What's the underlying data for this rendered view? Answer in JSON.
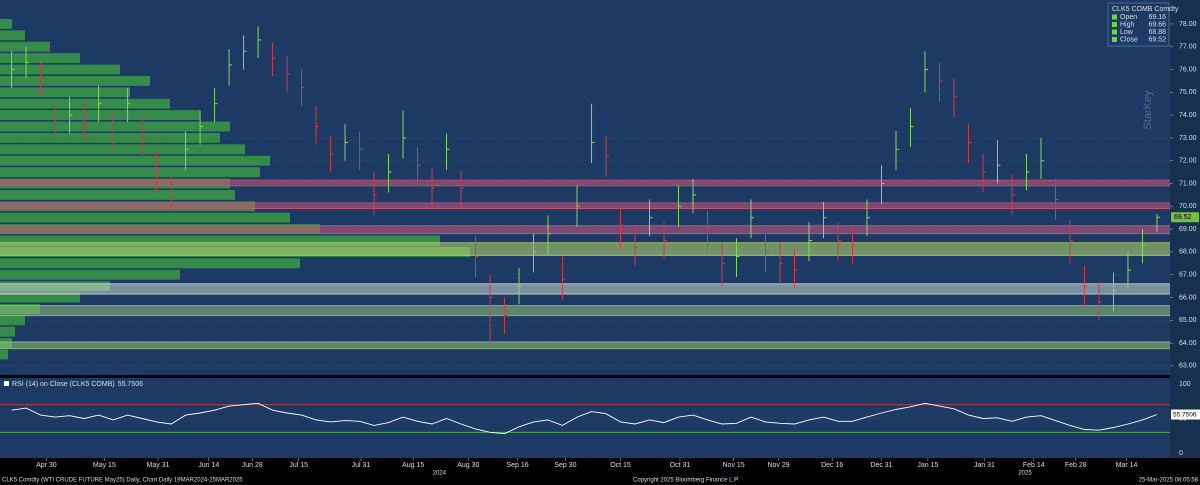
{
  "chart_data": {
    "type": "ohlc",
    "high": [
      76.8,
      77.0,
      76.4,
      74.6,
      74.8,
      74.5,
      75.3,
      74.2,
      75.2,
      73.9,
      72.4,
      71.4,
      73.3,
      74.2,
      75.2,
      76.9,
      77.5,
      77.9,
      77.2,
      76.6,
      76.0,
      74.4,
      73.1,
      73.6,
      73.3,
      71.5,
      72.3,
      74.2,
      72.6,
      71.7,
      73.2,
      71.6,
      68.7,
      67.0,
      66.0,
      67.3,
      68.8,
      69.6,
      67.8,
      70.9,
      74.5,
      73.1,
      69.9,
      69.1,
      70.3,
      69.3,
      70.9,
      71.2,
      69.8,
      68.4,
      68.6,
      70.3,
      68.8,
      68.4,
      68.1,
      69.3,
      70.2,
      69.3,
      69.1,
      70.3,
      71.8,
      73.3,
      74.3,
      76.8,
      76.3,
      75.6,
      73.6,
      72.3,
      72.9,
      71.4,
      72.3,
      73.0,
      71.2,
      69.4,
      67.4,
      66.7,
      67.1,
      68.0,
      69.0,
      69.66
    ],
    "low": [
      75.2,
      75.6,
      74.9,
      73.0,
      73.2,
      72.9,
      73.7,
      72.4,
      73.7,
      72.2,
      70.6,
      69.9,
      71.6,
      72.7,
      73.7,
      75.3,
      76.0,
      76.5,
      75.7,
      75.0,
      74.4,
      72.7,
      71.5,
      72.0,
      71.6,
      69.6,
      70.6,
      72.1,
      70.9,
      69.9,
      71.6,
      69.9,
      66.9,
      64.0,
      64.4,
      65.7,
      67.1,
      67.9,
      65.9,
      69.1,
      71.9,
      71.3,
      68.1,
      67.4,
      68.7,
      67.7,
      69.1,
      69.7,
      68.1,
      66.5,
      66.9,
      68.6,
      67.1,
      66.6,
      66.4,
      67.6,
      68.6,
      67.6,
      67.5,
      68.7,
      70.1,
      71.6,
      72.6,
      75.0,
      74.6,
      73.9,
      71.9,
      70.6,
      71.0,
      69.6,
      70.7,
      71.2,
      69.4,
      67.5,
      65.6,
      65.0,
      65.4,
      66.4,
      67.5,
      68.88
    ],
    "close": [
      76.0,
      76.3,
      75.6,
      73.8,
      74.0,
      73.6,
      74.5,
      73.2,
      74.5,
      73.0,
      71.5,
      70.5,
      72.5,
      73.5,
      74.5,
      76.2,
      76.8,
      77.3,
      76.5,
      75.8,
      75.2,
      73.5,
      72.3,
      72.8,
      72.5,
      70.5,
      71.5,
      73.0,
      71.8,
      70.8,
      72.5,
      70.8,
      67.8,
      66.0,
      65.2,
      66.5,
      68.0,
      68.8,
      66.8,
      70.0,
      72.8,
      72.2,
      69.0,
      68.2,
      69.5,
      68.5,
      70.0,
      70.5,
      69.0,
      67.5,
      67.8,
      69.5,
      68.0,
      67.5,
      67.2,
      68.5,
      69.5,
      68.5,
      68.3,
      69.5,
      71.0,
      72.5,
      73.5,
      76.0,
      75.5,
      74.8,
      72.8,
      71.5,
      71.8,
      70.5,
      71.5,
      72.0,
      70.3,
      68.5,
      66.5,
      65.8,
      66.3,
      67.2,
      68.3,
      69.52
    ],
    "up_color": "#7fdc5a",
    "down_color": "#d23c46",
    "ylim": [
      62.6,
      79.05
    ],
    "yticks": [
      {
        "value": 63,
        "label": "63.00"
      },
      {
        "value": 64,
        "label": "64.00"
      },
      {
        "value": 65,
        "label": "65.00"
      },
      {
        "value": 66,
        "label": "66.00"
      },
      {
        "value": 67,
        "label": "67.00"
      },
      {
        "value": 68,
        "label": "68.00"
      },
      {
        "value": 69,
        "label": "69.00"
      },
      {
        "value": 70,
        "label": "70.00"
      },
      {
        "value": 71,
        "label": "71.00"
      },
      {
        "value": 72,
        "label": "72.00"
      },
      {
        "value": 73,
        "label": "73.00"
      },
      {
        "value": 74,
        "label": "74.00"
      },
      {
        "value": 75,
        "label": "75.00"
      },
      {
        "value": 76,
        "label": "76.00"
      },
      {
        "value": 77,
        "label": "77.00"
      },
      {
        "value": 78,
        "label": "78.00"
      }
    ],
    "grid": true,
    "xlim": [
      -0.8,
      79.9
    ],
    "xticks": [
      {
        "value": 2.4,
        "label": "Apr 30"
      },
      {
        "value": 6.4,
        "label": "May 15"
      },
      {
        "value": 10.1,
        "label": "May 31"
      },
      {
        "value": 13.6,
        "label": "Jun 14"
      },
      {
        "value": 16.6,
        "label": "Jun 28"
      },
      {
        "value": 19.8,
        "label": "Jul 15"
      },
      {
        "value": 24.1,
        "label": "Jul 31"
      },
      {
        "value": 27.7,
        "label": "Aug 15"
      },
      {
        "value": 31.5,
        "label": "Aug 30"
      },
      {
        "value": 34.9,
        "label": "Sep 16"
      },
      {
        "value": 38.2,
        "label": "Sep 30"
      },
      {
        "value": 42.0,
        "label": "Oct 15"
      },
      {
        "value": 46.1,
        "label": "Oct 31"
      },
      {
        "value": 49.8,
        "label": "Nov 15"
      },
      {
        "value": 52.9,
        "label": "Nov 29"
      },
      {
        "value": 56.6,
        "label": "Dec 16"
      },
      {
        "value": 60.0,
        "label": "Dec 31"
      },
      {
        "value": 63.2,
        "label": "Jan 15"
      },
      {
        "value": 67.1,
        "label": "Jan 31"
      },
      {
        "value": 70.5,
        "label": "Feb 14"
      },
      {
        "value": 73.4,
        "label": "Feb 28"
      },
      {
        "value": 76.9,
        "label": "Mar 14"
      }
    ],
    "year_labels": [
      {
        "value": 29.5,
        "label": "2024"
      },
      {
        "value": 69.9,
        "label": "2025"
      }
    ],
    "bands": [
      {
        "from": 70.9,
        "to": 71.15,
        "color": "#c8567a"
      },
      {
        "from": 69.9,
        "to": 70.15,
        "color": "#c8567a"
      },
      {
        "from": 68.8,
        "to": 69.15,
        "color": "#c8567a"
      },
      {
        "from": 67.85,
        "to": 68.4,
        "color": "#b9d86a"
      },
      {
        "from": 66.15,
        "to": 66.6,
        "color": "#c9d7d0"
      },
      {
        "from": 65.2,
        "to": 65.65,
        "color": "#8fc27a"
      },
      {
        "from": 63.75,
        "to": 64.05,
        "color": "#8fc27a"
      }
    ],
    "volume_profile": {
      "color": "#3a9a44",
      "levels": [
        78.0,
        77.5,
        77.0,
        76.5,
        76.0,
        75.5,
        75.0,
        74.5,
        74.0,
        73.5,
        73.0,
        72.5,
        72.0,
        71.5,
        71.0,
        70.5,
        70.0,
        69.5,
        69.0,
        68.5,
        68.0,
        67.5,
        67.0,
        66.5,
        66.0,
        65.5,
        65.0,
        64.5,
        64.0,
        63.5
      ],
      "values": [
        12,
        25,
        50,
        80,
        120,
        150,
        130,
        170,
        200,
        230,
        220,
        245,
        270,
        260,
        230,
        235,
        255,
        290,
        320,
        440,
        470,
        300,
        180,
        110,
        80,
        40,
        25,
        15,
        12,
        8
      ]
    },
    "legend": {
      "title": "CLK5 COMB Comdty",
      "items": [
        {
          "name": "Open",
          "value": 69.16,
          "color": "#6fd04a"
        },
        {
          "name": "High",
          "value": 69.66,
          "color": "#6fd04a"
        },
        {
          "name": "Low",
          "value": 68.88,
          "color": "#6fd04a"
        },
        {
          "name": "Close",
          "value": 69.52,
          "color": "#6fd04a"
        }
      ]
    },
    "watermark": "StarKey",
    "rsi": {
      "label": "RSI (14) on Close (CLK5 COMB)",
      "color": "#ffffff",
      "values": [
        62,
        65,
        55,
        52,
        54,
        50,
        55,
        48,
        55,
        50,
        45,
        42,
        55,
        58,
        62,
        68,
        70,
        72,
        62,
        58,
        55,
        48,
        45,
        47,
        46,
        40,
        44,
        52,
        46,
        42,
        50,
        42,
        35,
        30,
        28,
        38,
        45,
        48,
        40,
        52,
        60,
        57,
        45,
        42,
        48,
        44,
        52,
        55,
        48,
        42,
        43,
        52,
        45,
        43,
        42,
        48,
        52,
        46,
        46,
        52,
        58,
        63,
        67,
        72,
        68,
        64,
        55,
        50,
        51,
        46,
        52,
        54,
        47,
        40,
        34,
        33,
        37,
        42,
        48,
        55.7506
      ],
      "ylim": [
        0,
        100
      ],
      "yticks": [
        0,
        50,
        100
      ],
      "overbought": 70,
      "oversold": 30
    }
  },
  "footer": {
    "left": "CLK5 Comdty (WTI CRUDE FUTURE May25) Daily, Chart Daily 19MAR2024-25MAR2025",
    "center": "Copyright 2025 Bloomberg Finance L.P.",
    "right": "25-Mar-2025 08:05:58"
  }
}
